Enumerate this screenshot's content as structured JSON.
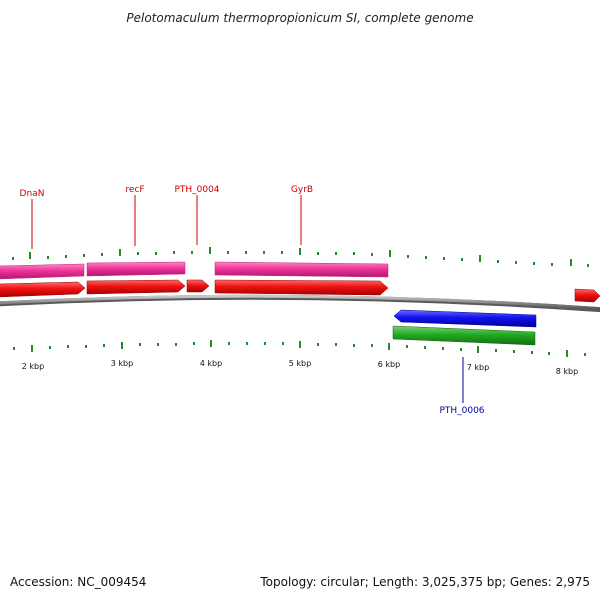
{
  "title": "Pelotomaculum thermopropionicum SI, complete genome",
  "footer": {
    "accession": "Accession: NC_009454",
    "summary": "Topology: circular; Length: 3,025,375 bp; Genes: 2,975"
  },
  "axis": {
    "tick_labels": [
      "2 kbp",
      "3 kbp",
      "4 kbp",
      "5 kbp",
      "6 kbp",
      "7 kbp",
      "8 kbp"
    ]
  },
  "gene_labels": [
    {
      "text": "DnaN",
      "color": "#cc0000"
    },
    {
      "text": "recF",
      "color": "#cc0000"
    },
    {
      "text": "PTH_0004",
      "color": "#cc0000"
    },
    {
      "text": "GyrB",
      "color": "#cc0000"
    },
    {
      "text": "PTH_0006",
      "color": "#0000aa"
    }
  ],
  "colors": {
    "forward_cds": "#ee1111",
    "forward_gene": "#ee3399",
    "reverse_cds": "#1111ee",
    "reverse_gene": "#22aa22",
    "backbone": "#8a8a8a",
    "tick": "#2a8a2a"
  }
}
